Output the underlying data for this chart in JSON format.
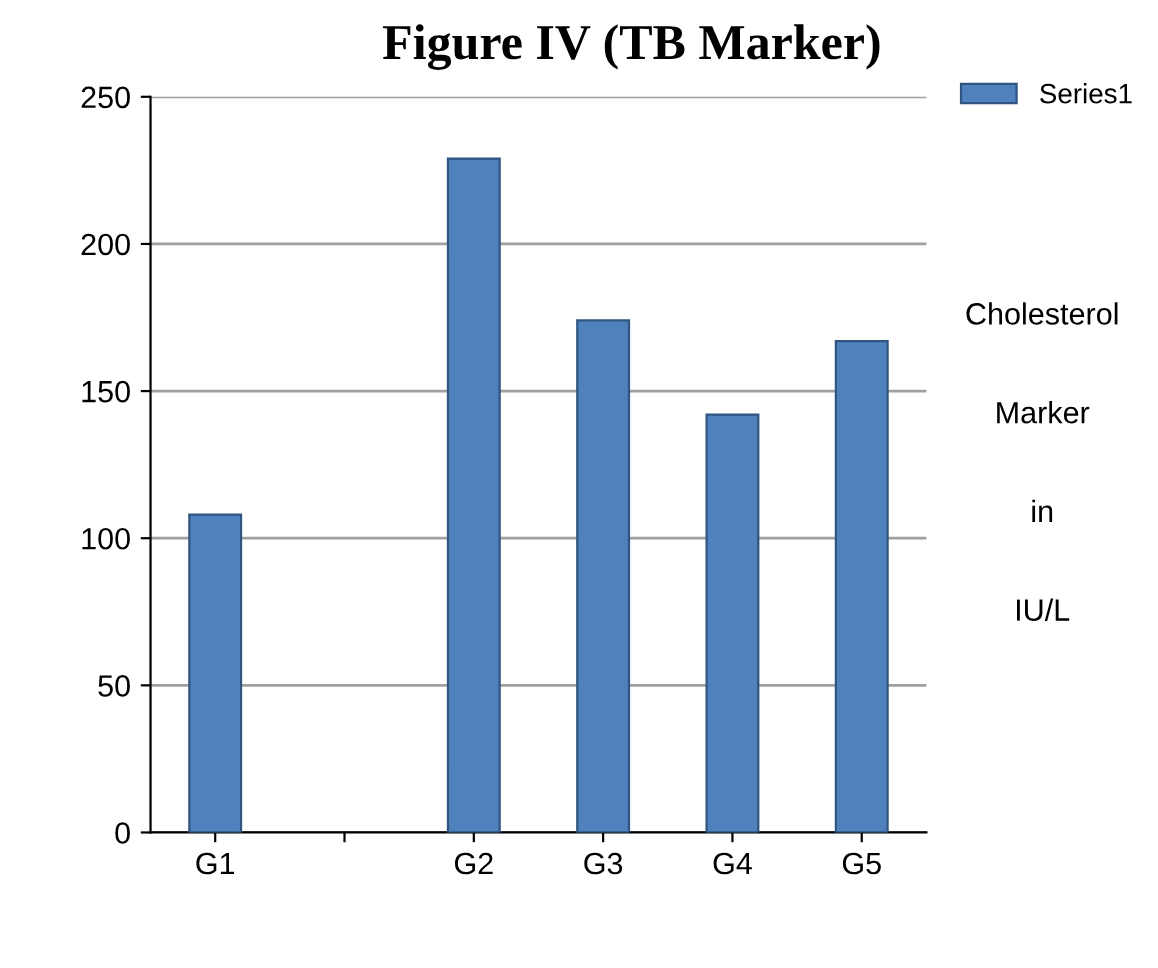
{
  "chart_data": {
    "type": "bar",
    "title": "Figure IV (TB Marker)",
    "categories": [
      "G1",
      null,
      "G2",
      "G3",
      "G4",
      "G5"
    ],
    "series": [
      {
        "name": "Series1",
        "color": "#4f81bd",
        "values": [
          108,
          null,
          229,
          174,
          142,
          167
        ]
      }
    ],
    "ylim": [
      0,
      250
    ],
    "yticks": [
      0,
      50,
      100,
      150,
      200,
      250
    ],
    "grid": "y",
    "legend": "top right",
    "annotations": [
      "Cholesterol Marker in IU/L"
    ]
  }
}
